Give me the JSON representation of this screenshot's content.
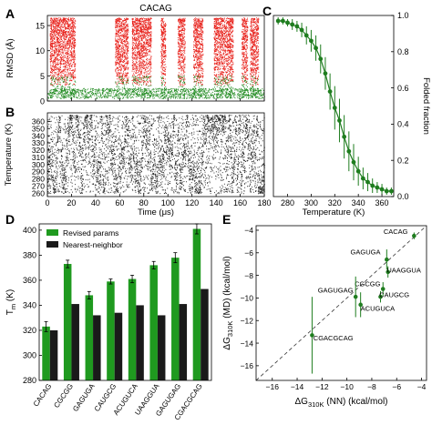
{
  "colors": {
    "unfolded_red": "#e8231d",
    "folded_green": "#1f8a1f",
    "trajectory_black": "#2a2a2a",
    "revised_green": "#1f9a1f",
    "nn_black": "#1a1a1a",
    "fit_green": "#1f7d1f"
  },
  "chart_data": [
    {
      "panel": "A",
      "type": "scatter",
      "title": "CACAG",
      "ylabel": "RMSD (Å)",
      "xlim": [
        0,
        180
      ],
      "ylim": [
        0,
        17
      ],
      "yticks": [
        0,
        5,
        10,
        15
      ],
      "series": [
        {
          "color": "red",
          "state": "unfolded",
          "y_range": [
            3,
            16.5
          ],
          "segments": [
            [
              2,
              23
            ],
            [
              56,
              67
            ],
            [
              70,
              86
            ],
            [
              94,
              98
            ],
            [
              108,
              114
            ],
            [
              121,
              129
            ],
            [
              138,
              154
            ],
            [
              161,
              166
            ],
            [
              168,
              175
            ]
          ]
        },
        {
          "color": "green",
          "state": "folded",
          "y_range": [
            0.5,
            2.5
          ],
          "segments": [
            [
              0,
              180
            ]
          ]
        }
      ]
    },
    {
      "panel": "B",
      "type": "scatter",
      "xlabel": "Time (μs)",
      "ylabel": "Temperature (K)",
      "xlim": [
        0,
        180
      ],
      "ylim": [
        255,
        372
      ],
      "xticks": [
        0,
        20,
        40,
        60,
        80,
        100,
        120,
        140,
        160,
        180
      ],
      "yticks": [
        260,
        270,
        280,
        290,
        300,
        310,
        320,
        330,
        340,
        350,
        360
      ],
      "series": [
        {
          "color": "black",
          "state": "replica temperature trajectory"
        }
      ]
    },
    {
      "panel": "C",
      "type": "line",
      "xlabel": "Temperature (K)",
      "ylabel": "Folded fraction",
      "xlim": [
        268,
        370
      ],
      "ylim": [
        0,
        1
      ],
      "xticks": [
        280,
        300,
        320,
        340,
        360
      ],
      "yticks": [
        0.0,
        0.2,
        0.4,
        0.6,
        0.8,
        1.0
      ],
      "x": [
        272,
        276,
        280,
        284,
        288,
        292,
        296,
        300,
        304,
        308,
        312,
        316,
        320,
        324,
        328,
        332,
        336,
        340,
        344,
        348,
        352,
        356,
        360,
        364,
        368
      ],
      "y": [
        0.97,
        0.97,
        0.96,
        0.95,
        0.94,
        0.92,
        0.89,
        0.86,
        0.82,
        0.76,
        0.68,
        0.58,
        0.49,
        0.42,
        0.33,
        0.25,
        0.19,
        0.14,
        0.1,
        0.08,
        0.06,
        0.05,
        0.04,
        0.03,
        0.03
      ],
      "yerr": [
        0.02,
        0.02,
        0.02,
        0.03,
        0.03,
        0.04,
        0.05,
        0.06,
        0.07,
        0.08,
        0.09,
        0.1,
        0.12,
        0.12,
        0.12,
        0.11,
        0.1,
        0.08,
        0.06,
        0.05,
        0.04,
        0.03,
        0.03,
        0.02,
        0.02
      ]
    },
    {
      "panel": "D",
      "type": "bar",
      "ylabel": "T",
      "ylabel_sub": "m",
      "ylabel_unit": " (K)",
      "ylim": [
        280,
        405
      ],
      "yticks": [
        280,
        300,
        320,
        340,
        360,
        380,
        400
      ],
      "legend_position": "top-left",
      "categories": [
        "CACAG",
        "CGCGG",
        "GAGUGA",
        "CAUGCG",
        "ACUGUCA",
        "UAAGGUA",
        "GAGUGAG",
        "CGACGCAG"
      ],
      "series": [
        {
          "name": "Revised params",
          "values": [
            323,
            373,
            348,
            359,
            361,
            372,
            378,
            401
          ],
          "yerr": [
            4,
            3,
            3,
            2,
            3,
            3,
            4,
            4
          ]
        },
        {
          "name": "Nearest-neighbor",
          "values": [
            320,
            341,
            332,
            334,
            340,
            332,
            341,
            353
          ]
        }
      ]
    },
    {
      "panel": "E",
      "type": "scatter",
      "xlabel_main": "ΔG",
      "xlabel_sub": "310K",
      "xlabel_unit": " (NN) (kcal/mol)",
      "ylabel_main": "ΔG",
      "ylabel_sub": "310K",
      "ylabel_unit": " (MD) (kcal/mol)",
      "xlim": [
        -17.3,
        -3.6
      ],
      "ylim": [
        -17.3,
        -3.6
      ],
      "xticks": [
        -16,
        -14,
        -12,
        -10,
        -8,
        -6,
        -4
      ],
      "yticks": [
        -16,
        -14,
        -12,
        -10,
        -8,
        -6,
        -4
      ],
      "points": [
        {
          "label": "CACAG",
          "x": -4.6,
          "y": -4.5,
          "yerr": 0.3
        },
        {
          "label": "GAGUGA",
          "x": -6.8,
          "y": -6.6,
          "yerr": 0.9
        },
        {
          "label": "UAAGGUA",
          "x": -6.7,
          "y": -7.7,
          "yerr": 0.5
        },
        {
          "label": "CGCGG",
          "x": -7.1,
          "y": -9.2,
          "yerr": 0.6
        },
        {
          "label": "CAUGCG",
          "x": -7.3,
          "y": -9.9,
          "yerr": 0.5
        },
        {
          "label": "GAGUGAG",
          "x": -9.3,
          "y": -9.9,
          "yerr": 1.8
        },
        {
          "label": "ACUGUCA",
          "x": -8.9,
          "y": -10.6,
          "yerr": 1.1
        },
        {
          "label": "CGACGCAG",
          "x": -12.8,
          "y": -13.3,
          "yerr": 3.4
        }
      ]
    }
  ]
}
